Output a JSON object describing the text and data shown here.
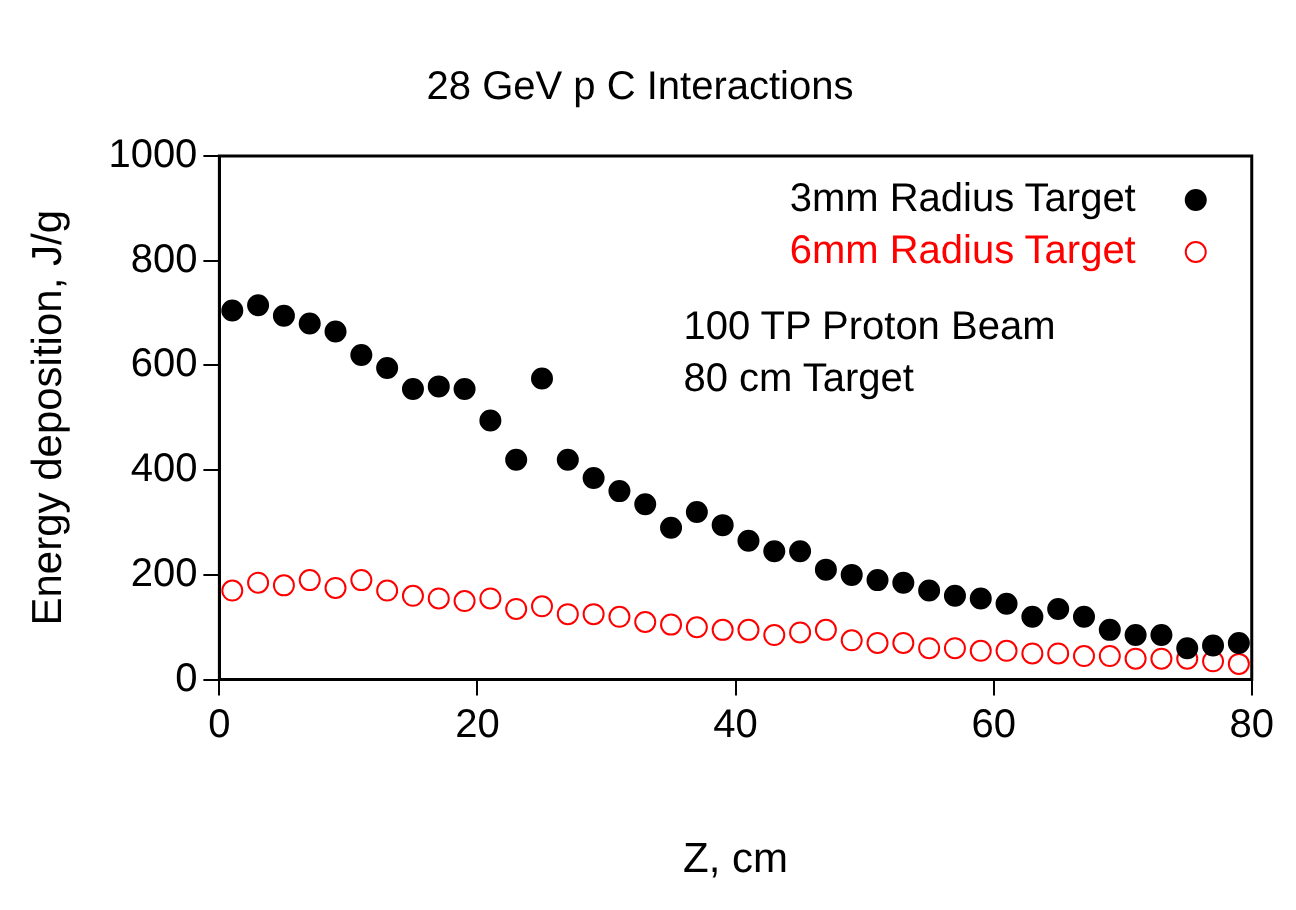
{
  "chart_data": {
    "type": "scatter",
    "title": "28 GeV p C Interactions",
    "xlabel": "Z, cm",
    "ylabel": "Energy deposition, J/g",
    "x": [
      1,
      3,
      5,
      7,
      9,
      11,
      13,
      15,
      17,
      19,
      21,
      23,
      25,
      27,
      29,
      31,
      33,
      35,
      37,
      39,
      41,
      43,
      45,
      47,
      49,
      51,
      53,
      55,
      57,
      59,
      61,
      63,
      65,
      67,
      69,
      71,
      73,
      75,
      77,
      79
    ],
    "series": [
      {
        "name": "3mm Radius Target",
        "color": "#000000",
        "marker": "circle",
        "values": [
          705,
          715,
          695,
          680,
          665,
          620,
          595,
          555,
          560,
          555,
          495,
          420,
          575,
          420,
          385,
          360,
          335,
          290,
          320,
          295,
          265,
          245,
          245,
          210,
          200,
          190,
          185,
          170,
          160,
          155,
          145,
          120,
          135,
          120,
          95,
          85,
          85,
          60,
          65,
          70
        ]
      },
      {
        "name": "6mm Radius Target",
        "color": "#ff0000",
        "marker": "open circle",
        "values": [
          170,
          185,
          180,
          190,
          175,
          190,
          170,
          160,
          155,
          150,
          155,
          135,
          140,
          125,
          125,
          120,
          110,
          105,
          100,
          95,
          95,
          85,
          90,
          95,
          75,
          70,
          70,
          60,
          60,
          55,
          55,
          50,
          50,
          45,
          45,
          40,
          40,
          40,
          35,
          30
        ]
      }
    ],
    "annotations": [
      "100 TP Proton Beam",
      "80 cm Target"
    ],
    "xlim": [
      0,
      80
    ],
    "xticks": [
      0,
      20,
      40,
      60,
      80
    ],
    "ylim": [
      0,
      1000
    ],
    "yticks": [
      0,
      200,
      400,
      600,
      800,
      1000
    ],
    "grid": false,
    "legend": "top right"
  }
}
